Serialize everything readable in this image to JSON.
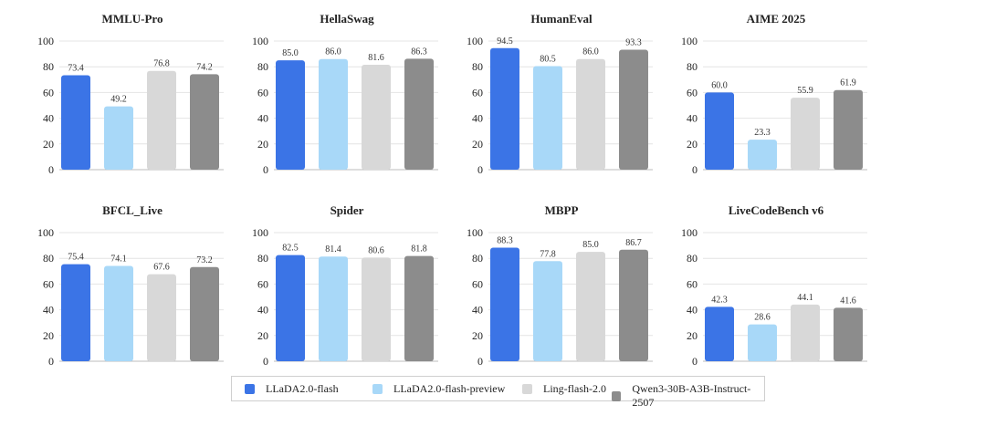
{
  "colors": {
    "LLaDA2.0-flash": "#3B74E6",
    "LLaDA2.0-flash-preview": "#A8D8F8",
    "Ling-flash-2.0": "#D8D8D8",
    "Qwen3-30B-A3B-Instruct-2507": "#8C8C8C",
    "grid": "#e4e4e4",
    "axis": "#bdbdbd",
    "text": "#222222"
  },
  "legend": [
    {
      "label": "LLaDA2.0-flash",
      "icon": "swatch"
    },
    {
      "label": "LLaDA2.0-flash-preview",
      "icon": "swatch"
    },
    {
      "label": "Ling-flash-2.0",
      "icon": "swatch"
    },
    {
      "label": "Qwen3-30B-A3B-Instruct-2507",
      "icon": "swatch"
    }
  ],
  "chart_data": [
    {
      "type": "bar",
      "title": "MMLU-Pro",
      "ylim": [
        0,
        100
      ],
      "yticks": [
        "0",
        "20",
        "40",
        "60",
        "80",
        "100"
      ],
      "series": [
        {
          "name": "LLaDA2.0-flash",
          "value": 73.4,
          "label": "73.4"
        },
        {
          "name": "LLaDA2.0-flash-preview",
          "value": 49.2,
          "label": "49.2"
        },
        {
          "name": "Ling-flash-2.0",
          "value": 76.8,
          "label": "76.8"
        },
        {
          "name": "Qwen3-30B-A3B-Instruct-2507",
          "value": 74.2,
          "label": "74.2"
        }
      ]
    },
    {
      "type": "bar",
      "title": "HellaSwag",
      "ylim": [
        0,
        100
      ],
      "yticks": [
        "0",
        "20",
        "40",
        "60",
        "80",
        "100"
      ],
      "series": [
        {
          "name": "LLaDA2.0-flash",
          "value": 85.0,
          "label": "85.0"
        },
        {
          "name": "LLaDA2.0-flash-preview",
          "value": 86.0,
          "label": "86.0"
        },
        {
          "name": "Ling-flash-2.0",
          "value": 81.6,
          "label": "81.6"
        },
        {
          "name": "Qwen3-30B-A3B-Instruct-2507",
          "value": 86.3,
          "label": "86.3"
        }
      ]
    },
    {
      "type": "bar",
      "title": "HumanEval",
      "ylim": [
        0,
        100
      ],
      "yticks": [
        "0",
        "20",
        "40",
        "60",
        "80",
        "100"
      ],
      "series": [
        {
          "name": "LLaDA2.0-flash",
          "value": 94.5,
          "label": "94.5"
        },
        {
          "name": "LLaDA2.0-flash-preview",
          "value": 80.5,
          "label": "80.5"
        },
        {
          "name": "Ling-flash-2.0",
          "value": 86.0,
          "label": "86.0"
        },
        {
          "name": "Qwen3-30B-A3B-Instruct-2507",
          "value": 93.3,
          "label": "93.3"
        }
      ]
    },
    {
      "type": "bar",
      "title": "AIME 2025",
      "ylim": [
        0,
        100
      ],
      "yticks": [
        "0",
        "20",
        "40",
        "60",
        "80",
        "100"
      ],
      "series": [
        {
          "name": "LLaDA2.0-flash",
          "value": 60.0,
          "label": "60.0"
        },
        {
          "name": "LLaDA2.0-flash-preview",
          "value": 23.3,
          "label": "23.3"
        },
        {
          "name": "Ling-flash-2.0",
          "value": 55.9,
          "label": "55.9"
        },
        {
          "name": "Qwen3-30B-A3B-Instruct-2507",
          "value": 61.9,
          "label": "61.9"
        }
      ]
    },
    {
      "type": "bar",
      "title": "BFCL_Live",
      "ylim": [
        0,
        100
      ],
      "yticks": [
        "0",
        "20",
        "40",
        "60",
        "80",
        "100"
      ],
      "series": [
        {
          "name": "LLaDA2.0-flash",
          "value": 75.4,
          "label": "75.4"
        },
        {
          "name": "LLaDA2.0-flash-preview",
          "value": 74.1,
          "label": "74.1"
        },
        {
          "name": "Ling-flash-2.0",
          "value": 67.6,
          "label": "67.6"
        },
        {
          "name": "Qwen3-30B-A3B-Instruct-2507",
          "value": 73.2,
          "label": "73.2"
        }
      ]
    },
    {
      "type": "bar",
      "title": "Spider",
      "ylim": [
        0,
        100
      ],
      "yticks": [
        "0",
        "20",
        "40",
        "60",
        "80",
        "100"
      ],
      "series": [
        {
          "name": "LLaDA2.0-flash",
          "value": 82.5,
          "label": "82.5"
        },
        {
          "name": "LLaDA2.0-flash-preview",
          "value": 81.4,
          "label": "81.4"
        },
        {
          "name": "Ling-flash-2.0",
          "value": 80.6,
          "label": "80.6"
        },
        {
          "name": "Qwen3-30B-A3B-Instruct-2507",
          "value": 81.8,
          "label": "81.8"
        }
      ]
    },
    {
      "type": "bar",
      "title": "MBPP",
      "ylim": [
        0,
        100
      ],
      "yticks": [
        "0",
        "20",
        "40",
        "60",
        "80",
        "100"
      ],
      "series": [
        {
          "name": "LLaDA2.0-flash",
          "value": 88.3,
          "label": "88.3"
        },
        {
          "name": "LLaDA2.0-flash-preview",
          "value": 77.8,
          "label": "77.8"
        },
        {
          "name": "Ling-flash-2.0",
          "value": 85.0,
          "label": "85.0"
        },
        {
          "name": "Qwen3-30B-A3B-Instruct-2507",
          "value": 86.7,
          "label": "86.7"
        }
      ]
    },
    {
      "type": "bar",
      "title": "LiveCodeBench v6",
      "ylim": [
        0,
        100
      ],
      "yticks": [
        "0",
        "20",
        "40",
        "60",
        "80",
        "100"
      ],
      "series": [
        {
          "name": "LLaDA2.0-flash",
          "value": 42.3,
          "label": "42.3"
        },
        {
          "name": "LLaDA2.0-flash-preview",
          "value": 28.6,
          "label": "28.6"
        },
        {
          "name": "Ling-flash-2.0",
          "value": 44.1,
          "label": "44.1"
        },
        {
          "name": "Qwen3-30B-A3B-Instruct-2507",
          "value": 41.6,
          "label": "41.6"
        }
      ]
    }
  ]
}
